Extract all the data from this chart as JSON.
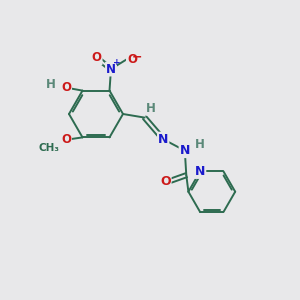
{
  "background_color": "#e8e8ea",
  "bond_color": "#2d6b50",
  "atom_colors": {
    "N": "#1a1acc",
    "O": "#cc1a1a",
    "H": "#5a8878",
    "C": "#2d6b50"
  }
}
